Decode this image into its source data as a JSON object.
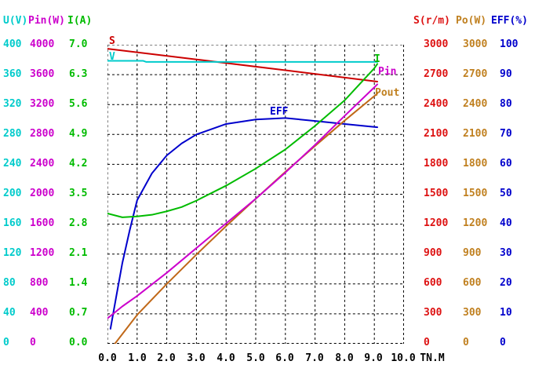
{
  "axes": {
    "left_columns": [
      {
        "label": "U(V)",
        "color": "#00CBCB",
        "ticks": [
          "400",
          "360",
          "320",
          "280",
          "240",
          "200",
          "160",
          "120",
          "80",
          "40",
          "0"
        ]
      },
      {
        "label": "Pin(W)",
        "color": "#CC00CC",
        "ticks": [
          "4000",
          "3600",
          "3200",
          "2800",
          "2400",
          "2000",
          "1600",
          "1200",
          "800",
          "400",
          "0"
        ]
      },
      {
        "label": "I(A)",
        "color": "#00BB00",
        "ticks": [
          "7.0",
          "6.3",
          "5.6",
          "4.9",
          "4.2",
          "3.5",
          "2.8",
          "2.1",
          "1.4",
          "0.7",
          "0.0"
        ]
      }
    ],
    "right_columns": [
      {
        "label": "S(r/m)",
        "color": "#DD1111",
        "ticks": [
          "3000",
          "2700",
          "2400",
          "2100",
          "1800",
          "1500",
          "1200",
          "900",
          "600",
          "300",
          "0"
        ]
      },
      {
        "label": "Po(W)",
        "color": "#C08020",
        "ticks": [
          "3000",
          "2700",
          "2400",
          "2100",
          "1800",
          "1500",
          "1200",
          "900",
          "600",
          "300",
          "0"
        ]
      },
      {
        "label": "EFF(%)",
        "color": "#0000CC",
        "ticks": [
          "100",
          "90",
          "80",
          "70",
          "60",
          "50",
          "40",
          "30",
          "20",
          "10",
          "0"
        ]
      }
    ],
    "x_label": "TN.M"
  },
  "chart_data": {
    "type": "line",
    "title": "",
    "xlabel": "TN.M",
    "x_axis": {
      "range": [
        0,
        10
      ],
      "ticks": [
        "0.0",
        "1.0",
        "2.0",
        "3.0",
        "4.0",
        "5.0",
        "6.0",
        "7.0",
        "8.0",
        "9.0",
        "10.0"
      ]
    },
    "grid": "dashed",
    "series": [
      {
        "name": "EFF",
        "axis": "EFF(%)",
        "axis_max": 100,
        "color": "#0000CC",
        "x": [
          0.1,
          0.3,
          0.5,
          0.75,
          1,
          1.5,
          2,
          2.5,
          3,
          4,
          5,
          6,
          7,
          8,
          9,
          9.1
        ],
        "y": [
          5,
          16,
          27,
          38,
          48,
          57,
          63,
          67,
          70,
          73.5,
          75,
          75.5,
          74.5,
          73.5,
          72.5,
          72.4
        ]
      },
      {
        "name": "S",
        "axis": "S(r/m)",
        "axis_max": 3000,
        "color": "#CC0000",
        "x": [
          0,
          3,
          6,
          9.1
        ],
        "y": [
          2960,
          2852,
          2744,
          2630
        ]
      },
      {
        "name": "V",
        "axis": "U(V)",
        "axis_max": 400,
        "color": "#00CBCB",
        "x": [
          0,
          1.2,
          1.3,
          9.1
        ],
        "y": [
          378.5,
          378.5,
          377,
          377
        ]
      },
      {
        "name": "Pout",
        "axis": "Po(W)",
        "axis_max": 3000,
        "color": "#C06818",
        "x": [
          0.25,
          1,
          2,
          3,
          4,
          5,
          6,
          7,
          8,
          9,
          9.1
        ],
        "y": [
          0,
          290,
          600,
          895,
          1180,
          1455,
          1725,
          1985,
          2240,
          2485,
          2510
        ]
      },
      {
        "name": "Pin",
        "axis": "Pin(W)",
        "axis_max": 4000,
        "color": "#CC00CC",
        "x": [
          0,
          0.5,
          1,
          2,
          3,
          4,
          5,
          6,
          7,
          8,
          9,
          9.1
        ],
        "y": [
          340,
          500,
          640,
          950,
          1280,
          1610,
          1940,
          2290,
          2660,
          3050,
          3430,
          3470
        ]
      },
      {
        "name": "I",
        "axis": "I(A)",
        "axis_max": 7,
        "color": "#00BB00",
        "x": [
          0,
          0.5,
          1,
          1.5,
          2,
          2.5,
          3,
          4,
          5,
          6,
          7,
          8,
          9,
          9.1
        ],
        "y": [
          3.05,
          2.96,
          2.98,
          3.02,
          3.1,
          3.2,
          3.35,
          3.7,
          4.1,
          4.55,
          5.1,
          5.7,
          6.45,
          6.55
        ]
      }
    ],
    "annotations": [
      {
        "text": "S",
        "color": "#CC0000"
      },
      {
        "text": "V",
        "color": "#00CBCB"
      },
      {
        "text": "EFF",
        "color": "#0000CC"
      },
      {
        "text": "I",
        "color": "#00BB00"
      },
      {
        "text": "Pin",
        "color": "#CC00CC"
      },
      {
        "text": "Pout",
        "color": "#C08020"
      }
    ]
  }
}
